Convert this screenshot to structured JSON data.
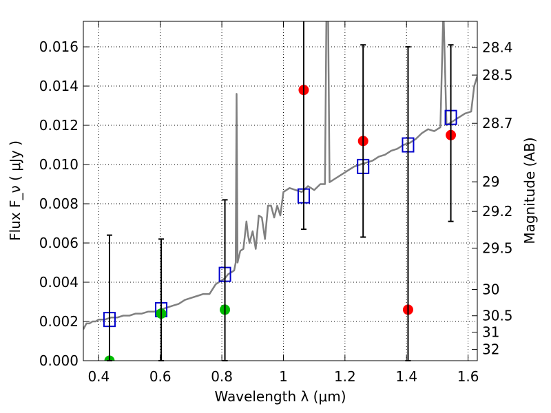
{
  "chart_data": {
    "type": "scatter",
    "xlabel": "Wavelength  λ (μm)",
    "ylabel": "Flux  F_ν  ( μJy )",
    "ylabel_right": "Magnitude (AB)",
    "xlim": [
      0.35,
      1.63
    ],
    "ylim": [
      0.0,
      0.0173
    ],
    "grid": true,
    "x_ticks": [
      {
        "value": 0.4,
        "label": "0.4"
      },
      {
        "value": 0.6,
        "label": "0.6"
      },
      {
        "value": 0.8,
        "label": "0.8"
      },
      {
        "value": 1.0,
        "label": "1"
      },
      {
        "value": 1.2,
        "label": "1.2"
      },
      {
        "value": 1.4,
        "label": "1.4"
      },
      {
        "value": 1.6,
        "label": "1.6"
      }
    ],
    "y_ticks": [
      {
        "value": 0.0,
        "label": "0.000"
      },
      {
        "value": 0.002,
        "label": "0.002"
      },
      {
        "value": 0.004,
        "label": "0.004"
      },
      {
        "value": 0.006,
        "label": "0.006"
      },
      {
        "value": 0.008,
        "label": "0.008"
      },
      {
        "value": 0.01,
        "label": "0.010"
      },
      {
        "value": 0.012,
        "label": "0.012"
      },
      {
        "value": 0.014,
        "label": "0.014"
      },
      {
        "value": 0.016,
        "label": "0.016"
      }
    ],
    "right_ticks": [
      {
        "flux": 0.01597,
        "label": "28.4"
      },
      {
        "flux": 0.01456,
        "label": "28.5"
      },
      {
        "flux": 0.0121,
        "label": "28.7"
      },
      {
        "flux": 0.00912,
        "label": "29"
      },
      {
        "flux": 0.00761,
        "label": "29.2"
      },
      {
        "flux": 0.00574,
        "label": "29.5"
      },
      {
        "flux": 0.00363,
        "label": "30"
      },
      {
        "flux": 0.00229,
        "label": "30.5"
      },
      {
        "flux": 0.00145,
        "label": "31"
      },
      {
        "flux": 0.00058,
        "label": "32"
      }
    ],
    "series": [
      {
        "kind": "template",
        "color": "#808080",
        "points": [
          [
            0.35,
            0.0016
          ],
          [
            0.36,
            0.0019
          ],
          [
            0.37,
            0.0019
          ],
          [
            0.38,
            0.002
          ],
          [
            0.39,
            0.002
          ],
          [
            0.4,
            0.0021
          ],
          [
            0.42,
            0.0021
          ],
          [
            0.44,
            0.0022
          ],
          [
            0.46,
            0.0022
          ],
          [
            0.48,
            0.0023
          ],
          [
            0.5,
            0.0023
          ],
          [
            0.52,
            0.0024
          ],
          [
            0.54,
            0.0024
          ],
          [
            0.56,
            0.0025
          ],
          [
            0.58,
            0.0025
          ],
          [
            0.6,
            0.0026
          ],
          [
            0.62,
            0.0027
          ],
          [
            0.64,
            0.0028
          ],
          [
            0.66,
            0.0029
          ],
          [
            0.68,
            0.0031
          ],
          [
            0.7,
            0.0032
          ],
          [
            0.72,
            0.0033
          ],
          [
            0.74,
            0.0034
          ],
          [
            0.76,
            0.0034
          ],
          [
            0.78,
            0.0039
          ],
          [
            0.8,
            0.0041
          ],
          [
            0.81,
            0.0042
          ],
          [
            0.82,
            0.0044
          ],
          [
            0.83,
            0.0045
          ],
          [
            0.84,
            0.0046
          ],
          [
            0.845,
            0.005
          ],
          [
            0.848,
            0.0136
          ],
          [
            0.851,
            0.005
          ],
          [
            0.86,
            0.0056
          ],
          [
            0.87,
            0.0057
          ],
          [
            0.88,
            0.0071
          ],
          [
            0.885,
            0.0064
          ],
          [
            0.89,
            0.006
          ],
          [
            0.9,
            0.0066
          ],
          [
            0.91,
            0.0057
          ],
          [
            0.92,
            0.0074
          ],
          [
            0.93,
            0.0073
          ],
          [
            0.94,
            0.0062
          ],
          [
            0.95,
            0.0079
          ],
          [
            0.96,
            0.0079
          ],
          [
            0.97,
            0.0073
          ],
          [
            0.98,
            0.0079
          ],
          [
            0.99,
            0.0074
          ],
          [
            1.0,
            0.0086
          ],
          [
            1.02,
            0.0088
          ],
          [
            1.04,
            0.0087
          ],
          [
            1.06,
            0.0086
          ],
          [
            1.08,
            0.0089
          ],
          [
            1.1,
            0.0087
          ],
          [
            1.12,
            0.009
          ],
          [
            1.135,
            0.009
          ],
          [
            1.14,
            0.018
          ],
          [
            1.145,
            0.018
          ],
          [
            1.15,
            0.0091
          ],
          [
            1.17,
            0.0093
          ],
          [
            1.19,
            0.0095
          ],
          [
            1.21,
            0.0097
          ],
          [
            1.23,
            0.0099
          ],
          [
            1.25,
            0.01
          ],
          [
            1.27,
            0.0101
          ],
          [
            1.29,
            0.0102
          ],
          [
            1.31,
            0.0104
          ],
          [
            1.33,
            0.0105
          ],
          [
            1.35,
            0.0107
          ],
          [
            1.37,
            0.0108
          ],
          [
            1.39,
            0.011
          ],
          [
            1.41,
            0.0111
          ],
          [
            1.43,
            0.0113
          ],
          [
            1.45,
            0.0116
          ],
          [
            1.47,
            0.0118
          ],
          [
            1.49,
            0.0117
          ],
          [
            1.51,
            0.0119
          ],
          [
            1.52,
            0.018
          ],
          [
            1.53,
            0.012
          ],
          [
            1.55,
            0.0122
          ],
          [
            1.57,
            0.0124
          ],
          [
            1.59,
            0.0126
          ],
          [
            1.61,
            0.0127
          ],
          [
            1.62,
            0.014
          ],
          [
            1.63,
            0.0145
          ]
        ]
      },
      {
        "kind": "model-squares",
        "color": "#0000cc",
        "points": [
          [
            0.435,
            0.0021
          ],
          [
            0.603,
            0.0026
          ],
          [
            0.81,
            0.0044
          ],
          [
            1.066,
            0.0084
          ],
          [
            1.259,
            0.0099
          ],
          [
            1.405,
            0.011
          ],
          [
            1.544,
            0.0124
          ]
        ]
      },
      {
        "kind": "detections",
        "color": "#ff0000",
        "points": [
          [
            1.066,
            0.0138
          ],
          [
            1.259,
            0.0112
          ],
          [
            1.405,
            0.0026
          ],
          [
            1.544,
            0.0115
          ]
        ]
      },
      {
        "kind": "detections",
        "color": "#00bb00",
        "points": [
          [
            0.435,
            0.0
          ],
          [
            0.603,
            0.0024
          ],
          [
            0.81,
            0.0026
          ]
        ]
      },
      {
        "kind": "error-bars",
        "color": "#000000",
        "bars": [
          {
            "x": 0.435,
            "low": 0.0,
            "high": 0.0064
          },
          {
            "x": 0.603,
            "low": 0.0,
            "high": 0.0062
          },
          {
            "x": 0.81,
            "low": 0.0,
            "high": 0.0082
          },
          {
            "x": 1.066,
            "low": 0.0067,
            "high": 0.018
          },
          {
            "x": 1.259,
            "low": 0.0063,
            "high": 0.0161
          },
          {
            "x": 1.405,
            "low": 0.0,
            "high": 0.016
          },
          {
            "x": 1.544,
            "low": 0.0071,
            "high": 0.0161
          }
        ]
      }
    ]
  }
}
